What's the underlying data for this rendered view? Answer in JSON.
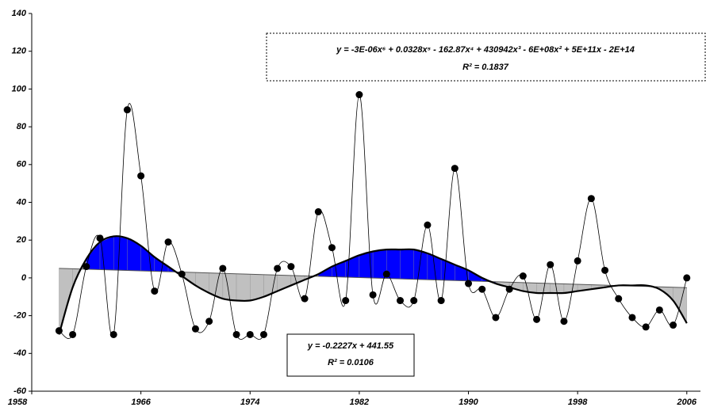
{
  "chart_data": {
    "type": "line",
    "x": [
      1960,
      1961,
      1962,
      1963,
      1964,
      1965,
      1966,
      1967,
      1968,
      1969,
      1970,
      1971,
      1972,
      1973,
      1974,
      1975,
      1976,
      1977,
      1978,
      1979,
      1980,
      1981,
      1982,
      1983,
      1984,
      1985,
      1986,
      1987,
      1988,
      1989,
      1990,
      1991,
      1992,
      1993,
      1994,
      1995,
      1996,
      1997,
      1998,
      1999,
      2000,
      2001,
      2002,
      2003,
      2004,
      2005,
      2006
    ],
    "values": [
      -28,
      -30,
      6,
      21,
      -30,
      89,
      54,
      -7,
      19,
      2,
      -27,
      -23,
      5,
      -30,
      -30,
      -30,
      5,
      6,
      -11,
      35,
      16,
      -12,
      97,
      -9,
      2,
      -12,
      -12,
      28,
      -12,
      58,
      -3,
      -6,
      -21,
      -6,
      1,
      -22,
      7,
      -23,
      9,
      42,
      4,
      -11,
      -21,
      -26,
      -17,
      -25,
      0
    ],
    "color": "#000000",
    "fits": [
      {
        "equation": "y = -3E-06x⁶ + 0.0328x⁵ - 162.87x⁴ + 430942x³ - 6E+08x² + 5E+11x - 2E+14",
        "r2": "R² = 0.1837",
        "values": [
          -30,
          -5,
          10,
          19,
          22,
          21,
          17,
          11,
          6,
          1,
          -4,
          -8,
          -11,
          -12,
          -12,
          -10,
          -7,
          -4,
          -1,
          2,
          6,
          9,
          12,
          14,
          15,
          15,
          15,
          13,
          10,
          7,
          4,
          0,
          -3,
          -5,
          -7,
          -8,
          -8,
          -8,
          -7,
          -6,
          -5,
          -4,
          -4,
          -4,
          -6,
          -12,
          -24
        ]
      },
      {
        "equation": "y = -0.2227x + 441.55",
        "r2": "R² = 0.0106",
        "x": [
          1960,
          2006
        ],
        "values": [
          5.06,
          -5.19
        ]
      }
    ],
    "above_color": "#0000ff",
    "below_color": "#c0c0c0",
    "xlim": [
      1958,
      2007
    ],
    "xticks": [
      1958,
      1966,
      1974,
      1982,
      1990,
      1998,
      2006
    ],
    "ylim": [
      -60,
      140
    ],
    "yticks": [
      -60,
      -40,
      -20,
      0,
      20,
      40,
      60,
      80,
      100,
      120,
      140
    ],
    "grid": false
  }
}
